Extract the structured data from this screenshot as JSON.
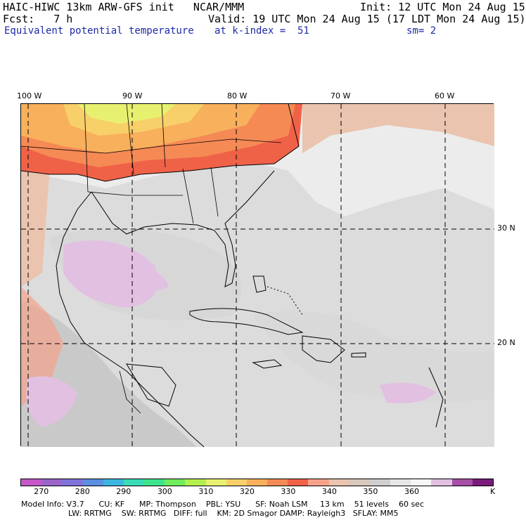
{
  "header": {
    "model_title": "HAIC-HIWC 13km ARW-GFS init   NCAR/MMM",
    "init": "Init: 12 UTC Mon 24 Aug 15",
    "fcst": "Fcst:   7 h",
    "valid": "Valid: 19 UTC Mon 24 Aug 15 (17 LDT Mon 24 Aug 15)",
    "field": "Equivalent potential temperature",
    "k_index": "at k-index =  51",
    "smoothing": "sm= 2"
  },
  "map": {
    "lon_labels": [
      "100 W",
      "90 W",
      "80 W",
      "70 W",
      "60 W"
    ],
    "lat_labels": [
      "30 N",
      "20 N"
    ]
  },
  "colorbar": {
    "colors": [
      "#c557c8",
      "#9b64c9",
      "#7f72d9",
      "#5b8fe0",
      "#3ab6e0",
      "#38dcb5",
      "#3ee48b",
      "#6fec5c",
      "#b5ef4f",
      "#e8f070",
      "#f7d06a",
      "#f8b05c",
      "#f58a55",
      "#f06248",
      "#f5a28a",
      "#eac4ae",
      "#d7c8bd",
      "#cfcfcf",
      "#e6e6e6",
      "#f6f6f6",
      "#e2c0e2",
      "#a64fa6",
      "#7b1b7b"
    ],
    "labels": [
      "270",
      "280",
      "290",
      "300",
      "310",
      "320",
      "330",
      "340",
      "350",
      "360"
    ],
    "unit": "K"
  },
  "footer": {
    "line1": "Model Info: V3.7      CU: KF      MP: Thompson    PBL: YSU      SF: Noah LSM     13 km    51 levels    60 sec",
    "line2": "LW: RRTMG    SW: RRTMG   DIFF: full    KM: 2D Smagor DAMP: Rayleigh3   SFLAY: MM5"
  }
}
